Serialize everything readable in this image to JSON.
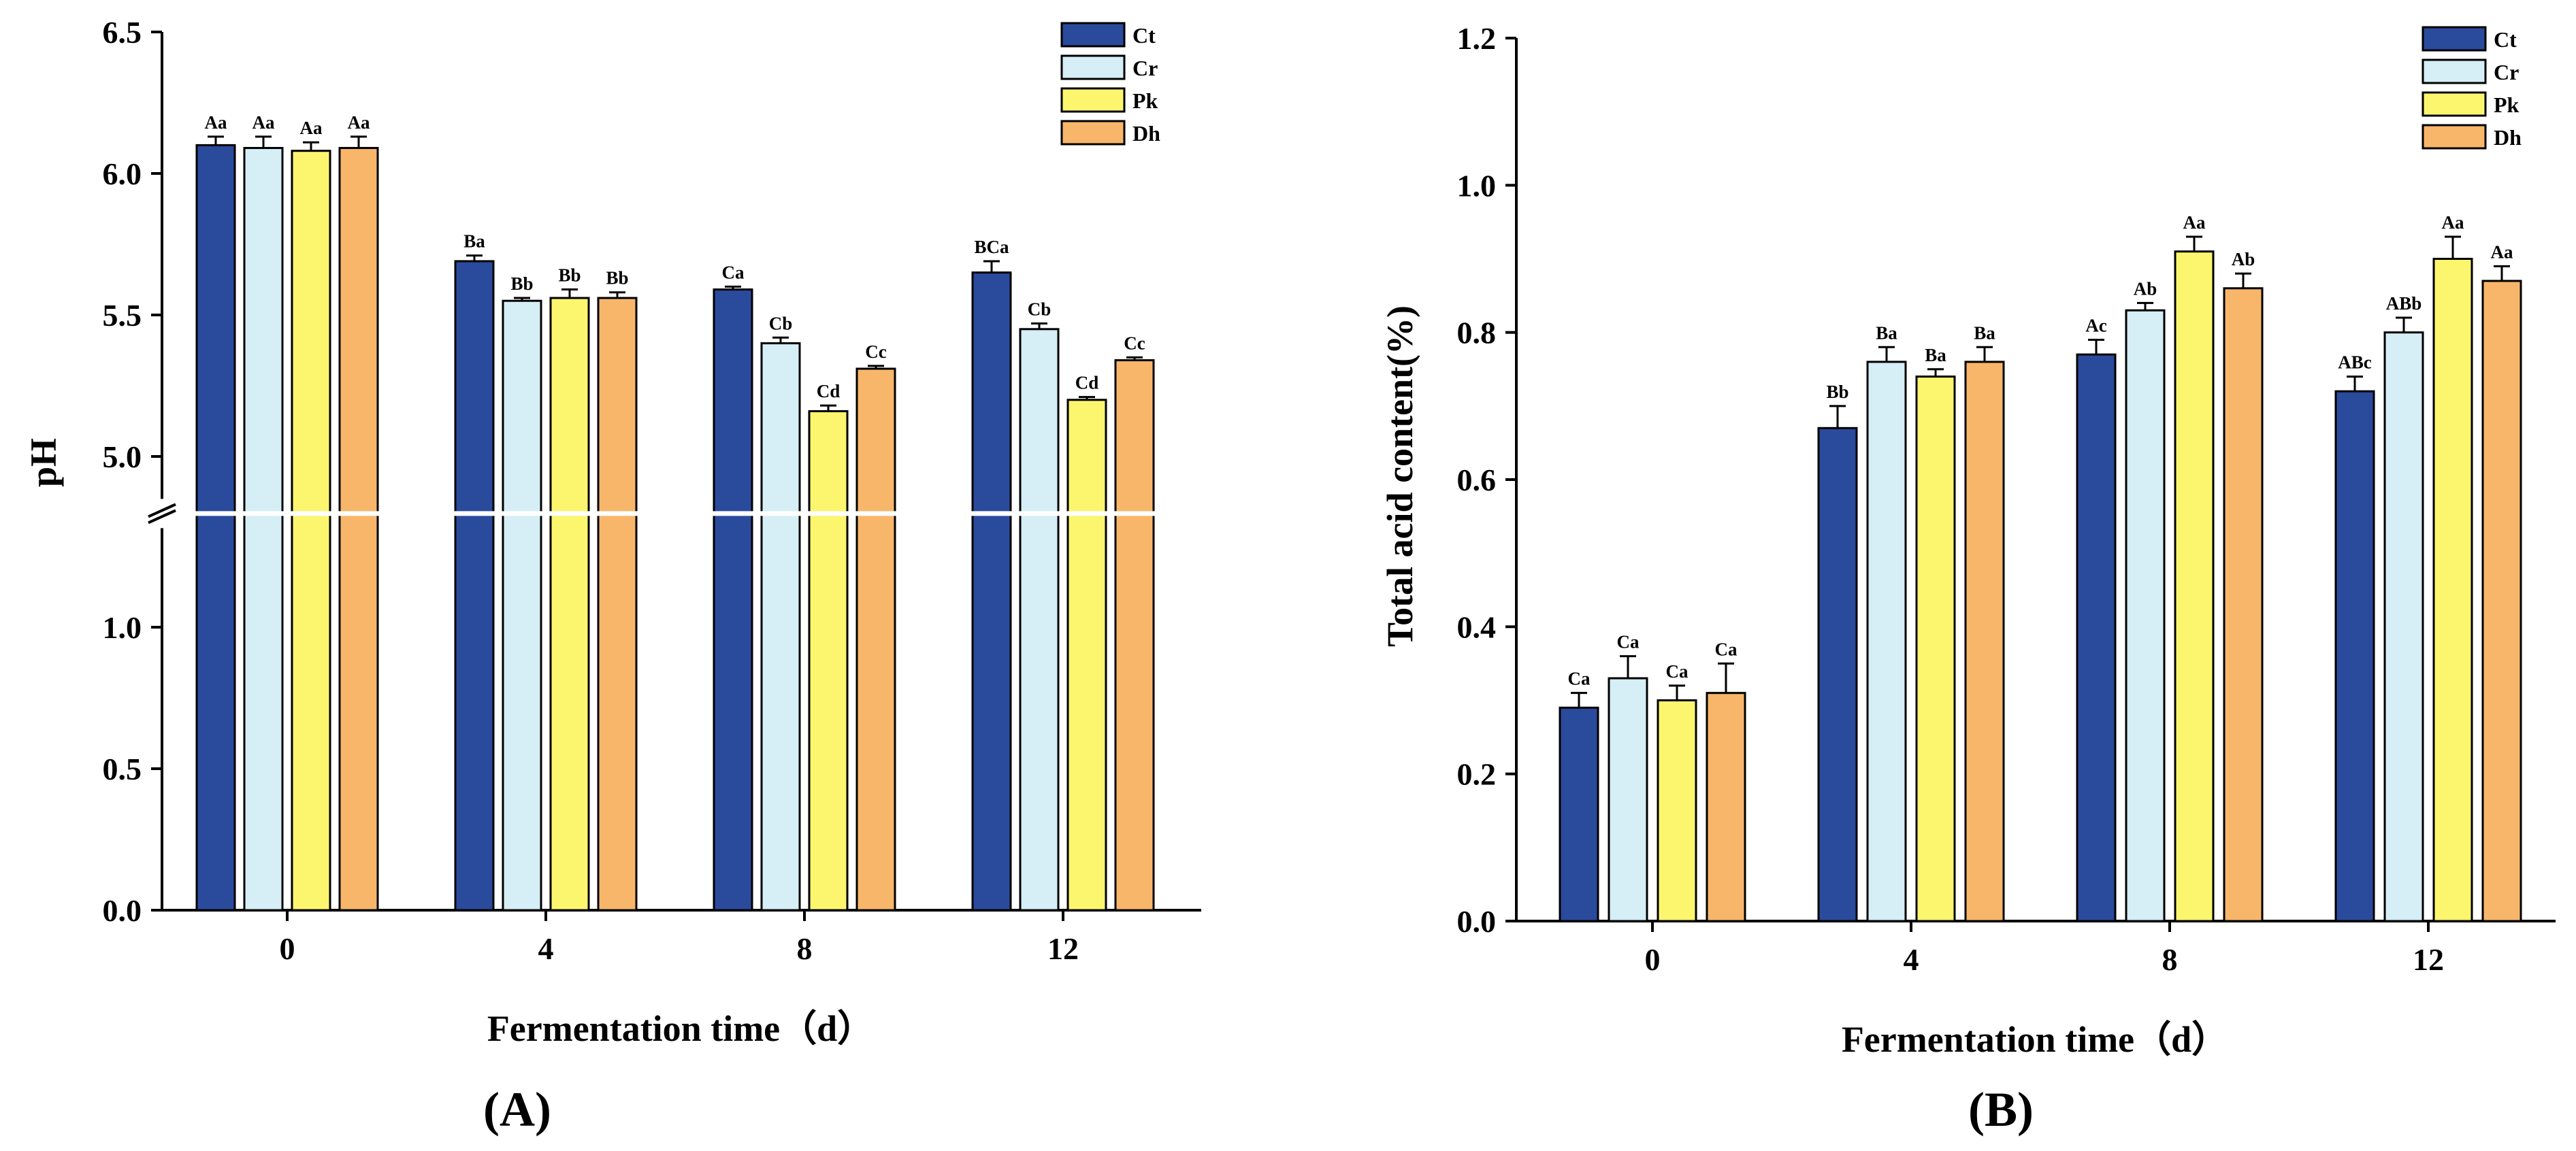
{
  "chart_data": [
    {
      "panel_label": "(A)",
      "type": "bar",
      "xlabel": "Fermentation time（d）",
      "ylabel": "pH",
      "categories": [
        "0",
        "4",
        "8",
        "12"
      ],
      "y_axis_break": {
        "lower_range": [
          0,
          1.35
        ],
        "upper_range": [
          4.85,
          6.5
        ]
      },
      "y_ticks_lower": [
        "0.0",
        "0.5",
        "1.0"
      ],
      "y_ticks_upper": [
        "5.0",
        "5.5",
        "6.0",
        "6.5"
      ],
      "legend": {
        "position": "top-right",
        "entries": [
          "Ct",
          "Cr",
          "Pk",
          "Dh"
        ]
      },
      "series": [
        {
          "name": "Ct",
          "color": "#2a4a9c",
          "values": [
            6.1,
            5.69,
            5.59,
            5.65
          ],
          "errors": [
            0.03,
            0.02,
            0.01,
            0.04
          ],
          "labels": [
            "Aa",
            "Ba",
            "Ca",
            "BCa"
          ]
        },
        {
          "name": "Cr",
          "color": "#d6eef6",
          "values": [
            6.09,
            5.55,
            5.4,
            5.45
          ],
          "errors": [
            0.04,
            0.01,
            0.02,
            0.02
          ],
          "labels": [
            "Aa",
            "Bb",
            "Cb",
            "Cb"
          ]
        },
        {
          "name": "Pk",
          "color": "#fbf66e",
          "values": [
            6.08,
            5.56,
            5.16,
            5.2
          ],
          "errors": [
            0.03,
            0.03,
            0.02,
            0.01
          ],
          "labels": [
            "Aa",
            "Bb",
            "Cd",
            "Cd"
          ]
        },
        {
          "name": "Dh",
          "color": "#f8b66a",
          "values": [
            6.09,
            5.56,
            5.31,
            5.34
          ],
          "errors": [
            0.04,
            0.02,
            0.01,
            0.01
          ],
          "labels": [
            "Aa",
            "Bb",
            "Cc",
            "Cc"
          ]
        }
      ]
    },
    {
      "panel_label": "(B)",
      "type": "bar",
      "xlabel": "Fermentation time（d）",
      "ylabel": "Total acid content(%)",
      "categories": [
        "0",
        "4",
        "8",
        "12"
      ],
      "ylim": [
        0,
        1.2
      ],
      "y_ticks": [
        "0.0",
        "0.2",
        "0.4",
        "0.6",
        "0.8",
        "1.0",
        "1.2"
      ],
      "legend": {
        "position": "top-right",
        "entries": [
          "Ct",
          "Cr",
          "Pk",
          "Dh"
        ]
      },
      "series": [
        {
          "name": "Ct",
          "color": "#2a4a9c",
          "values": [
            0.29,
            0.67,
            0.77,
            0.72
          ],
          "errors": [
            0.02,
            0.03,
            0.02,
            0.02
          ],
          "labels": [
            "Ca",
            "Bb",
            "Ac",
            "ABc"
          ]
        },
        {
          "name": "Cr",
          "color": "#d6eef6",
          "values": [
            0.33,
            0.76,
            0.83,
            0.8
          ],
          "errors": [
            0.03,
            0.02,
            0.01,
            0.02
          ],
          "labels": [
            "Ca",
            "Ba",
            "Ab",
            "ABb"
          ]
        },
        {
          "name": "Pk",
          "color": "#fbf66e",
          "values": [
            0.3,
            0.74,
            0.91,
            0.9
          ],
          "errors": [
            0.02,
            0.01,
            0.02,
            0.03
          ],
          "labels": [
            "Ca",
            "Ba",
            "Aa",
            "Aa"
          ]
        },
        {
          "name": "Dh",
          "color": "#f8b66a",
          "values": [
            0.31,
            0.76,
            0.86,
            0.87
          ],
          "errors": [
            0.04,
            0.02,
            0.02,
            0.02
          ],
          "labels": [
            "Ca",
            "Ba",
            "Ab",
            "Aa"
          ]
        }
      ]
    }
  ]
}
